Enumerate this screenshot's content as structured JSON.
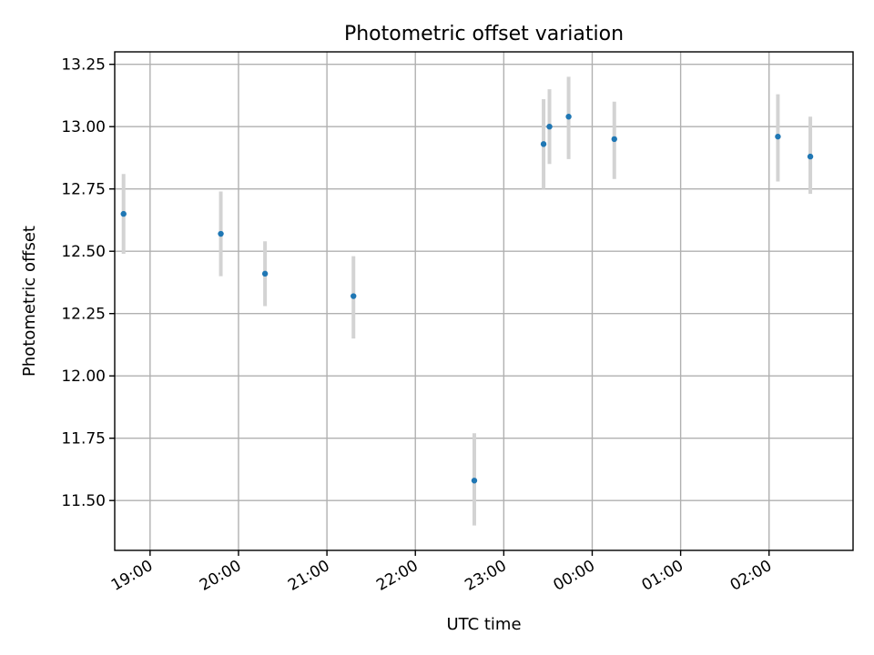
{
  "chart_data": {
    "type": "scatter",
    "title": "Photometric offset variation",
    "xlabel": "UTC time",
    "ylabel": "Photometric offset",
    "grid": true,
    "marker_color": "#1f77b4",
    "errorbar_color": "#d3d3d3",
    "xlim": [
      "18:36",
      "02:57"
    ],
    "ylim": [
      11.3,
      13.3
    ],
    "x_ticks": [
      "19:00",
      "20:00",
      "21:00",
      "22:00",
      "23:00",
      "00:00",
      "01:00",
      "02:00"
    ],
    "y_ticks": [
      "11.50",
      "11.75",
      "12.00",
      "12.25",
      "12.50",
      "12.75",
      "13.00",
      "13.25"
    ],
    "points": [
      {
        "time": "18:42",
        "offset": 12.65,
        "err_low": 12.49,
        "err_high": 12.81
      },
      {
        "time": "19:48",
        "offset": 12.57,
        "err_low": 12.4,
        "err_high": 12.74
      },
      {
        "time": "20:18",
        "offset": 12.41,
        "err_low": 12.28,
        "err_high": 12.54
      },
      {
        "time": "21:18",
        "offset": 12.32,
        "err_low": 12.15,
        "err_high": 12.48
      },
      {
        "time": "22:40",
        "offset": 11.58,
        "err_low": 11.4,
        "err_high": 11.77
      },
      {
        "time": "23:27",
        "offset": 12.93,
        "err_low": 12.75,
        "err_high": 13.11
      },
      {
        "time": "23:31",
        "offset": 13.0,
        "err_low": 12.85,
        "err_high": 13.15
      },
      {
        "time": "23:44",
        "offset": 13.04,
        "err_low": 12.87,
        "err_high": 13.2
      },
      {
        "time": "00:15",
        "offset": 12.95,
        "err_low": 12.79,
        "err_high": 13.1
      },
      {
        "time": "02:06",
        "offset": 12.96,
        "err_low": 12.78,
        "err_high": 13.13
      },
      {
        "time": "02:28",
        "offset": 12.88,
        "err_low": 12.73,
        "err_high": 13.04
      }
    ]
  }
}
